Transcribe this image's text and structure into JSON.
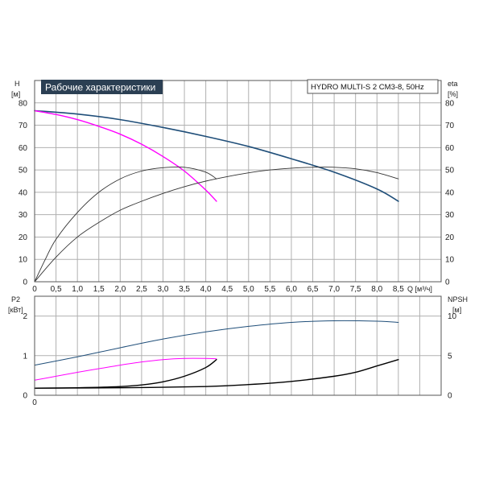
{
  "chart_data": {
    "type": "line",
    "title": "Рабочие характеристики",
    "subtitle": "HYDRO MULTI-S 2 CM3-8, 50Hz",
    "x_axis": {
      "label": "Q [м³/ч]",
      "ticks": [
        "0",
        "0,5",
        "1,0",
        "1,5",
        "2,0",
        "2,5",
        "3,0",
        "3,5",
        "4,0",
        "4,5",
        "5,0",
        "5,5",
        "6,0",
        "6,5",
        "7,0",
        "7,5",
        "8,0",
        "8,5"
      ],
      "range": [
        0,
        9.5
      ]
    },
    "top_panel": {
      "left_axis": {
        "label": "H",
        "unit": "[м]",
        "range": [
          0,
          90
        ],
        "ticks": [
          "0",
          "10",
          "20",
          "30",
          "40",
          "50",
          "60",
          "70",
          "80"
        ]
      },
      "right_axis": {
        "label": "eta",
        "unit": "[%]",
        "range": [
          0,
          90
        ],
        "ticks": [
          "0",
          "10",
          "20",
          "30",
          "40",
          "50",
          "60",
          "70",
          "80"
        ]
      },
      "series": [
        {
          "color": "#1f4e79",
          "width": 1.6,
          "x": [
            0,
            1,
            2,
            3,
            4,
            5,
            6,
            7,
            8,
            8.5
          ],
          "y": [
            76.5,
            75,
            72.5,
            69,
            65,
            60.5,
            55,
            49,
            41.5,
            36
          ]
        },
        {
          "color": "#ff00ff",
          "width": 1.4,
          "x": [
            0,
            0.5,
            1,
            1.5,
            2,
            2.5,
            3,
            3.5,
            4,
            4.25
          ],
          "y": [
            76.5,
            74.8,
            72.5,
            69.5,
            66,
            61.5,
            56,
            49.5,
            41,
            36
          ]
        },
        {
          "color": "#333333",
          "width": 0.9,
          "x": [
            0,
            0.25,
            0.5,
            1,
            1.5,
            2,
            2.5,
            3,
            3.5,
            4,
            4.25
          ],
          "y": [
            0,
            10,
            19,
            31,
            40,
            46,
            49.5,
            51,
            51.2,
            49,
            46
          ]
        },
        {
          "color": "#333333",
          "width": 0.9,
          "x": [
            0,
            0.5,
            1,
            1.5,
            2,
            2.5,
            3,
            3.5,
            4,
            4.5,
            5,
            5.5,
            6,
            6.5,
            7,
            7.5,
            8,
            8.5
          ],
          "y": [
            0,
            11,
            20,
            26.5,
            32,
            36,
            39.5,
            42.5,
            45,
            47,
            48.7,
            50,
            50.8,
            51.2,
            51.2,
            50.5,
            48.8,
            46
          ]
        }
      ]
    },
    "bottom_panel": {
      "left_axis": {
        "label": "P2",
        "unit": "[кВт]",
        "range": [
          0,
          2.5
        ],
        "ticks": [
          "0",
          "1",
          "2"
        ]
      },
      "right_axis": {
        "label": "NPSH",
        "unit": "[м]",
        "range": [
          0,
          12.5
        ],
        "ticks": [
          "0",
          "5",
          "10"
        ]
      },
      "series": [
        {
          "color": "#1f4e79",
          "width": 1.0,
          "x": [
            0,
            1,
            2,
            3,
            4,
            5,
            6,
            7,
            8,
            8.5
          ],
          "y": [
            0.76,
            0.97,
            1.2,
            1.42,
            1.6,
            1.74,
            1.84,
            1.88,
            1.87,
            1.84
          ]
        },
        {
          "color": "#ff00ff",
          "width": 1.0,
          "x": [
            0,
            0.5,
            1,
            1.5,
            2,
            2.5,
            3,
            3.5,
            4,
            4.25
          ],
          "y": [
            0.38,
            0.48,
            0.58,
            0.67,
            0.76,
            0.84,
            0.9,
            0.93,
            0.93,
            0.92
          ]
        },
        {
          "color": "#000000",
          "width": 1.4,
          "x": [
            0,
            1,
            2,
            2.5,
            3,
            3.5,
            4,
            4.25
          ],
          "y": [
            0.18,
            0.19,
            0.22,
            0.26,
            0.34,
            0.48,
            0.7,
            0.9
          ]
        },
        {
          "color": "#000000",
          "width": 1.4,
          "x": [
            0,
            2,
            4,
            5,
            6,
            7,
            7.5,
            8,
            8.5
          ],
          "y": [
            0.18,
            0.19,
            0.22,
            0.27,
            0.35,
            0.48,
            0.58,
            0.74,
            0.9
          ]
        }
      ]
    }
  }
}
